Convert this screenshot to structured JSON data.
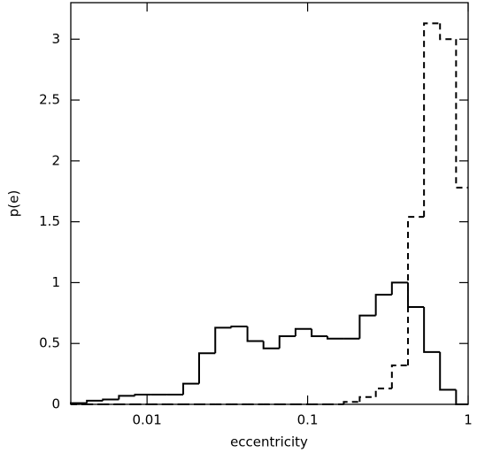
{
  "chart_data": {
    "type": "histogram",
    "x_label": "eccentricity",
    "y_label": "p(e)",
    "xscale": "log",
    "bins": [
      0.00335,
      0.00422,
      0.00531,
      0.00668,
      0.00841,
      0.0106,
      0.0133,
      0.0168,
      0.0211,
      0.0266,
      0.0335,
      0.0422,
      0.0531,
      0.0668,
      0.0841,
      0.106,
      0.133,
      0.168,
      0.211,
      0.266,
      0.335,
      0.422,
      0.531,
      0.668,
      0.841,
      1
    ],
    "series": [
      {
        "color": "#000000",
        "linestyle": "solid",
        "values": [
          0.01,
          0.03,
          0.04,
          0.07,
          0.08,
          0.08,
          0.08,
          0.17,
          0.42,
          0.63,
          0.64,
          0.52,
          0.46,
          0.56,
          0.62,
          0.56,
          0.54,
          0.54,
          0.73,
          0.9,
          1.0,
          0.8,
          0.43,
          0.12,
          0
        ]
      },
      {
        "color": "#000000",
        "linestyle": "dashed",
        "values": [
          0,
          0,
          0,
          0,
          0,
          0,
          0,
          0,
          0,
          0,
          0,
          0,
          0,
          0,
          0,
          0,
          0,
          0.02,
          0.06,
          0.13,
          0.32,
          1.54,
          3.13,
          3.0,
          1.78
        ]
      }
    ],
    "xlim": [
      0.00335,
      1
    ],
    "ylim": [
      0,
      3.3
    ],
    "xticks": [
      0.01,
      0.1,
      1
    ],
    "yticks": [
      0,
      0.5,
      1,
      1.5,
      2,
      2.5,
      3
    ]
  }
}
